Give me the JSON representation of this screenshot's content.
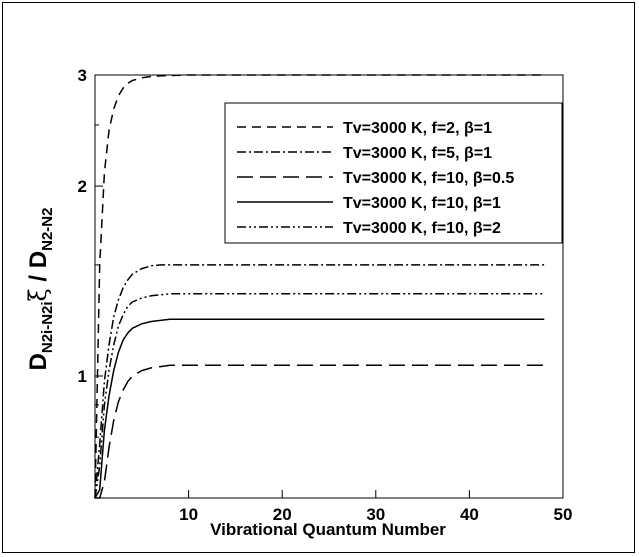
{
  "chart_data": {
    "type": "line",
    "xlabel": "Vibrational Quantum Number",
    "ylabel_parts": {
      "d1": "D",
      "sub1": "N2i-N2i",
      "xi": "ξ",
      "slash": " / ",
      "d2": "D",
      "sub2": "N2-N2"
    },
    "xlim": [
      0,
      50
    ],
    "ylim": [
      0,
      3
    ],
    "log_y": true,
    "x_ticks": [
      {
        "value": 10,
        "label": "10"
      },
      {
        "value": 20,
        "label": "20"
      },
      {
        "value": 30,
        "label": "30"
      },
      {
        "value": 40,
        "label": "40"
      },
      {
        "value": 50,
        "label": "50"
      }
    ],
    "y_ticks": [
      {
        "value": 1,
        "label": "1"
      },
      {
        "value": 2,
        "label": "2"
      },
      {
        "value": 3,
        "label": "3"
      }
    ],
    "legend_position": "top-right",
    "series": [
      {
        "name": "Tv=3000 K, f=2, β=1",
        "dash": "9,6",
        "x": [
          0,
          0.5,
          1,
          1.5,
          2,
          2.5,
          3,
          3.5,
          4,
          5,
          6,
          7,
          8,
          10,
          48
        ],
        "y": [
          0.55,
          1.5,
          2.1,
          2.45,
          2.65,
          2.78,
          2.86,
          2.91,
          2.94,
          2.97,
          2.985,
          2.99,
          2.995,
          3.0,
          3.0
        ]
      },
      {
        "name": "Tv=3000 K, f=5, β=1",
        "dash": "9,3,2,3",
        "x": [
          0,
          0.5,
          1,
          1.5,
          2,
          2.5,
          3,
          3.5,
          4,
          5,
          6,
          7,
          8,
          10,
          48
        ],
        "y": [
          0.55,
          0.78,
          0.98,
          1.12,
          1.24,
          1.32,
          1.38,
          1.42,
          1.45,
          1.48,
          1.495,
          1.5,
          1.5,
          1.5,
          1.5
        ]
      },
      {
        "name": "Tv=3000 K, f=10, β=0.5",
        "dash": "16,7",
        "x": [
          0,
          0.5,
          1,
          1.5,
          2,
          2.5,
          3,
          3.5,
          4,
          5,
          6,
          7,
          8,
          10,
          48
        ],
        "y": [
          0.44,
          0.56,
          0.68,
          0.77,
          0.85,
          0.91,
          0.95,
          0.98,
          1.0,
          1.02,
          1.03,
          1.035,
          1.04,
          1.04,
          1.04
        ]
      },
      {
        "name": "Tv=3000 K, f=10, β=1",
        "dash": "",
        "x": [
          0,
          0.5,
          1,
          1.5,
          2,
          2.5,
          3,
          3.5,
          4,
          5,
          6,
          7,
          8,
          10,
          48
        ],
        "y": [
          0.5,
          0.66,
          0.82,
          0.93,
          1.02,
          1.09,
          1.14,
          1.17,
          1.19,
          1.21,
          1.22,
          1.225,
          1.23,
          1.23,
          1.23
        ]
      },
      {
        "name": "Tv=3000 K, f=10, β=2",
        "dash": "9,3,2,3,2,3",
        "x": [
          0,
          0.5,
          1,
          1.5,
          2,
          2.5,
          3,
          3.5,
          4,
          5,
          6,
          7,
          8,
          10,
          48
        ],
        "y": [
          0.55,
          0.72,
          0.9,
          1.02,
          1.12,
          1.2,
          1.25,
          1.29,
          1.31,
          1.33,
          1.34,
          1.345,
          1.35,
          1.35,
          1.35
        ]
      }
    ]
  }
}
